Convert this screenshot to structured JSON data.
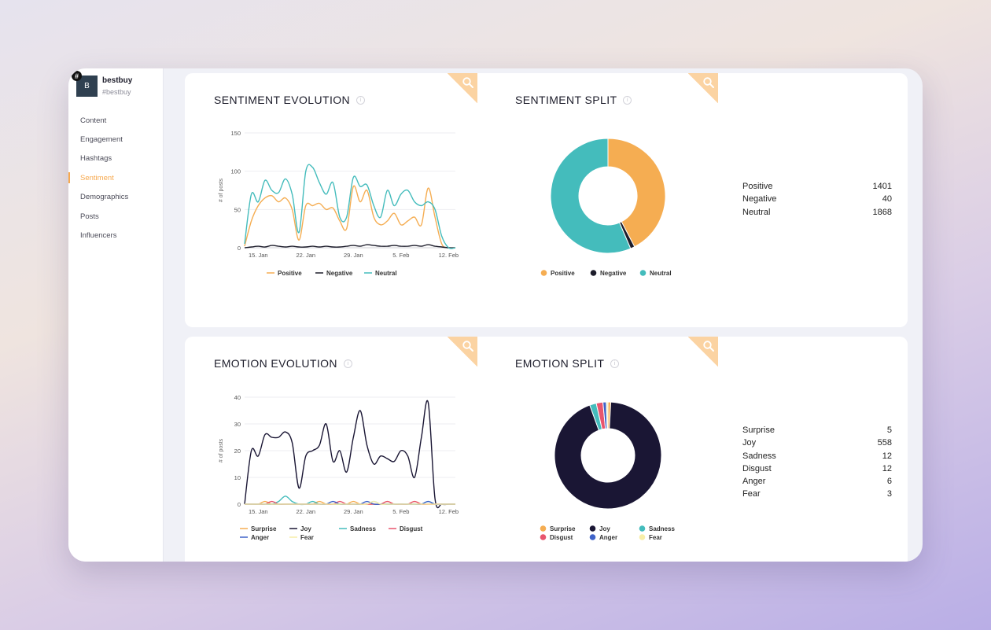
{
  "account": {
    "initial": "B",
    "badge": "#",
    "name": "bestbuy",
    "handle": "#bestbuy"
  },
  "nav": [
    {
      "label": "Content"
    },
    {
      "label": "Engagement"
    },
    {
      "label": "Hashtags"
    },
    {
      "label": "Sentiment",
      "active": true
    },
    {
      "label": "Demographics"
    },
    {
      "label": "Posts"
    },
    {
      "label": "Influencers"
    }
  ],
  "colors": {
    "accent": "#f7a94f",
    "positive": "#f5ad52",
    "negative": "#1d1d2b",
    "neutral": "#44bcbc",
    "surprise": "#f5ad52",
    "joy": "#1a1634",
    "sadness": "#44bcbc",
    "disgust": "#e8566e",
    "anger": "#3f63c9",
    "fear": "#f7eea8"
  },
  "icons": {
    "zoom": "magnifier-icon",
    "info": "info-icon"
  },
  "panels": {
    "sentiment_evolution": {
      "title": "SENTIMENT EVOLUTION"
    },
    "sentiment_split": {
      "title": "SENTIMENT SPLIT",
      "rows": [
        {
          "label": "Positive",
          "value": "1401"
        },
        {
          "label": "Negative",
          "value": "40"
        },
        {
          "label": "Neutral",
          "value": "1868"
        }
      ]
    },
    "emotion_evolution": {
      "title": "EMOTION EVOLUTION"
    },
    "emotion_split": {
      "title": "EMOTION SPLIT",
      "rows": [
        {
          "label": "Surprise",
          "value": "5"
        },
        {
          "label": "Joy",
          "value": "558"
        },
        {
          "label": "Sadness",
          "value": "12"
        },
        {
          "label": "Disgust",
          "value": "12"
        },
        {
          "label": "Anger",
          "value": "6"
        },
        {
          "label": "Fear",
          "value": "3"
        }
      ]
    }
  },
  "chart_data": [
    {
      "type": "line",
      "title": "SENTIMENT EVOLUTION",
      "ylabel": "# of posts",
      "ylim": [
        0,
        150
      ],
      "yticks": [
        0,
        50,
        100,
        150
      ],
      "x": [
        "2020-01-13",
        "2020-01-14",
        "2020-01-15",
        "2020-01-16",
        "2020-01-17",
        "2020-01-18",
        "2020-01-19",
        "2020-01-20",
        "2020-01-21",
        "2020-01-22",
        "2020-01-23",
        "2020-01-24",
        "2020-01-25",
        "2020-01-26",
        "2020-01-27",
        "2020-01-28",
        "2020-01-29",
        "2020-01-30",
        "2020-01-31",
        "2020-02-01",
        "2020-02-02",
        "2020-02-03",
        "2020-02-04",
        "2020-02-05",
        "2020-02-06",
        "2020-02-07",
        "2020-02-08",
        "2020-02-09",
        "2020-02-10",
        "2020-02-11",
        "2020-02-12",
        "2020-02-13"
      ],
      "xticks": [
        "15. Jan",
        "22. Jan",
        "29. Jan",
        "5. Feb",
        "12. Feb"
      ],
      "series": [
        {
          "name": "Positive",
          "values": [
            2,
            35,
            55,
            65,
            68,
            60,
            65,
            50,
            10,
            55,
            55,
            58,
            50,
            52,
            35,
            25,
            80,
            60,
            75,
            40,
            30,
            35,
            45,
            30,
            35,
            40,
            30,
            78,
            40,
            5,
            0,
            0
          ]
        },
        {
          "name": "Negative",
          "values": [
            0,
            1,
            2,
            1,
            3,
            2,
            1,
            2,
            1,
            1,
            2,
            1,
            2,
            1,
            1,
            2,
            3,
            2,
            4,
            3,
            2,
            2,
            3,
            2,
            2,
            3,
            2,
            4,
            2,
            1,
            0,
            0
          ]
        },
        {
          "name": "Neutral",
          "values": [
            5,
            70,
            60,
            88,
            75,
            72,
            90,
            70,
            20,
            100,
            105,
            85,
            70,
            85,
            40,
            40,
            92,
            80,
            82,
            55,
            40,
            75,
            55,
            70,
            75,
            60,
            55,
            60,
            50,
            15,
            0,
            0
          ]
        }
      ],
      "legend": "bottom"
    },
    {
      "type": "pie",
      "title": "SENTIMENT SPLIT",
      "categories": [
        "Positive",
        "Negative",
        "Neutral"
      ],
      "values": [
        1401,
        40,
        1868
      ],
      "donut": true,
      "legend": "bottom"
    },
    {
      "type": "line",
      "title": "EMOTION EVOLUTION",
      "ylabel": "# of posts",
      "ylim": [
        0,
        40
      ],
      "yticks": [
        0,
        10,
        20,
        30,
        40
      ],
      "x": [
        "2020-01-13",
        "2020-01-14",
        "2020-01-15",
        "2020-01-16",
        "2020-01-17",
        "2020-01-18",
        "2020-01-19",
        "2020-01-20",
        "2020-01-21",
        "2020-01-22",
        "2020-01-23",
        "2020-01-24",
        "2020-01-25",
        "2020-01-26",
        "2020-01-27",
        "2020-01-28",
        "2020-01-29",
        "2020-01-30",
        "2020-01-31",
        "2020-02-01",
        "2020-02-02",
        "2020-02-03",
        "2020-02-04",
        "2020-02-05",
        "2020-02-06",
        "2020-02-07",
        "2020-02-08",
        "2020-02-09",
        "2020-02-10",
        "2020-02-11",
        "2020-02-12",
        "2020-02-13"
      ],
      "xticks": [
        "15. Jan",
        "22. Jan",
        "29. Jan",
        "5. Feb",
        "12. Feb"
      ],
      "series": [
        {
          "name": "Surprise",
          "values": [
            0,
            0,
            0,
            1,
            0,
            0,
            0,
            0,
            0,
            0,
            0,
            1,
            0,
            0,
            0,
            0,
            1,
            0,
            0,
            0,
            0,
            1,
            0,
            0,
            0,
            1,
            0,
            0,
            0,
            0,
            0,
            0
          ]
        },
        {
          "name": "Joy",
          "values": [
            0,
            20,
            18,
            26,
            25,
            25,
            27,
            23,
            6,
            18,
            20,
            22,
            30,
            16,
            20,
            12,
            25,
            35,
            22,
            15,
            18,
            17,
            16,
            20,
            18,
            10,
            25,
            38,
            2,
            0,
            0,
            0
          ]
        },
        {
          "name": "Sadness",
          "values": [
            0,
            0,
            0,
            0,
            0,
            1,
            3,
            1,
            0,
            0,
            1,
            0,
            0,
            0,
            0,
            0,
            0,
            0,
            0,
            1,
            0,
            0,
            0,
            0,
            0,
            0,
            0,
            1,
            0,
            0,
            0,
            0
          ]
        },
        {
          "name": "Disgust",
          "values": [
            0,
            0,
            0,
            0,
            1,
            0,
            0,
            0,
            0,
            0,
            0,
            0,
            0,
            0,
            1,
            0,
            0,
            0,
            0,
            0,
            0,
            1,
            0,
            0,
            0,
            1,
            0,
            0,
            0,
            0,
            0,
            0
          ]
        },
        {
          "name": "Anger",
          "values": [
            0,
            0,
            0,
            0,
            0,
            0,
            0,
            0,
            0,
            0,
            0,
            0,
            0,
            1,
            0,
            0,
            0,
            0,
            1,
            0,
            0,
            0,
            0,
            0,
            0,
            0,
            0,
            1,
            0,
            0,
            0,
            0
          ]
        },
        {
          "name": "Fear",
          "values": [
            0,
            0,
            0,
            0,
            0,
            0,
            0,
            0,
            0,
            0,
            0,
            0,
            0,
            0,
            0,
            0,
            0,
            0,
            0,
            1,
            0,
            0,
            0,
            0,
            0,
            0,
            0,
            0,
            0,
            0,
            0,
            0
          ]
        }
      ],
      "legend": "bottom"
    },
    {
      "type": "pie",
      "title": "EMOTION SPLIT",
      "categories": [
        "Surprise",
        "Joy",
        "Sadness",
        "Disgust",
        "Anger",
        "Fear"
      ],
      "values": [
        5,
        558,
        12,
        12,
        6,
        3
      ],
      "donut": true,
      "legend": "bottom"
    }
  ]
}
